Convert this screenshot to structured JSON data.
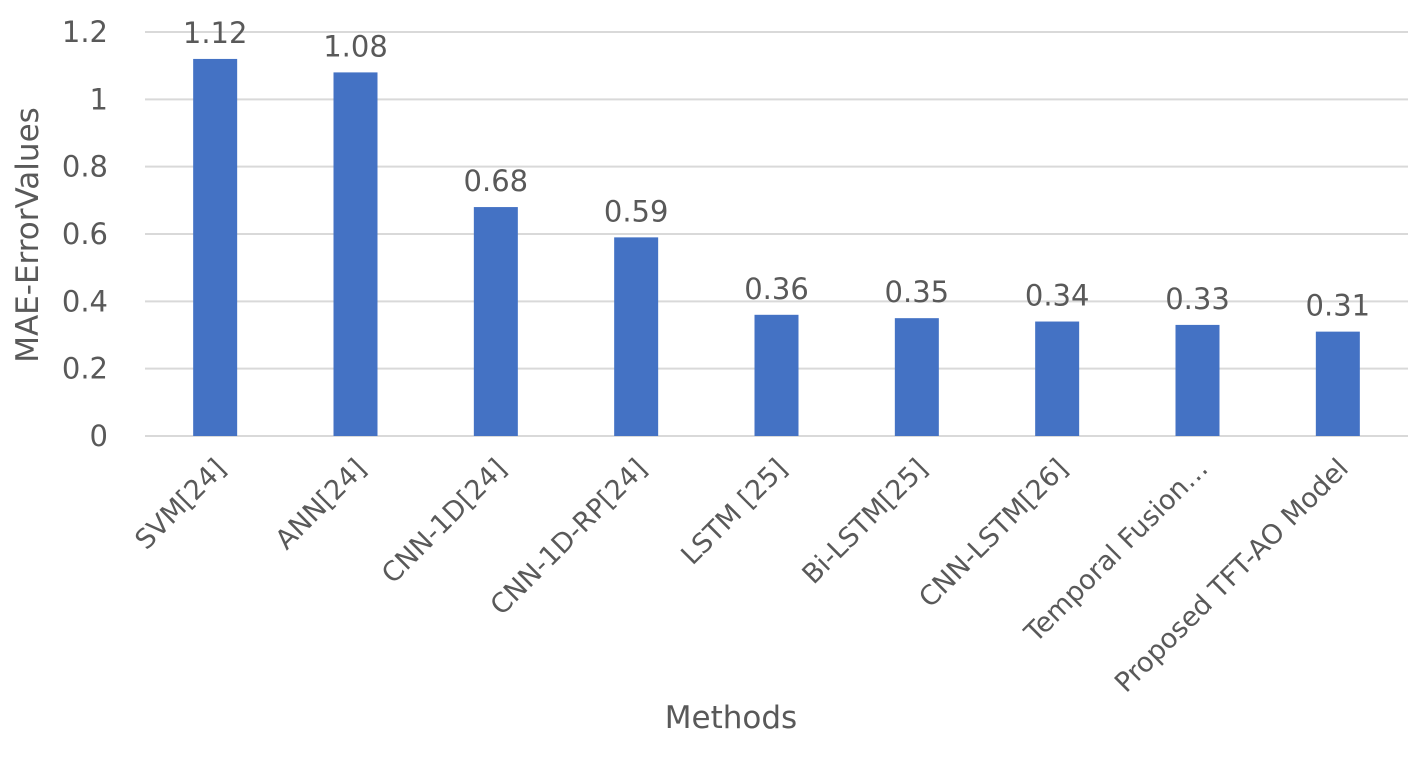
{
  "chart_data": {
    "type": "bar",
    "title": "",
    "xlabel": "Methods",
    "ylabel": "MAE-ErrorValues",
    "categories": [
      "SVM[24]",
      "ANN[24]",
      "CNN-1D[24]",
      "CNN-1D-RP[24]",
      "LSTM [25]",
      "Bi-LSTM[25]",
      "CNN-LSTM[26]",
      "Temporal Fusion…",
      "Proposed TFT-AO Model"
    ],
    "values": [
      1.12,
      1.08,
      0.68,
      0.59,
      0.36,
      0.35,
      0.34,
      0.33,
      0.31
    ],
    "data_labels": [
      "1.12",
      "1.08",
      "0.68",
      "0.59",
      "0.36",
      "0.35",
      "0.34",
      "0.33",
      "0.31"
    ],
    "ylim": [
      0,
      1.2
    ],
    "yticks": [
      0,
      0.2,
      0.4,
      0.6,
      0.8,
      1,
      1.2
    ],
    "ytick_labels": [
      "0",
      "0.2",
      "0.4",
      "0.6",
      "0.8",
      "1",
      "1.2"
    ],
    "grid": true,
    "legend": "none",
    "colors": {
      "bar": "#4472c4",
      "grid": "#d9d9d9",
      "text": "#595959"
    }
  }
}
